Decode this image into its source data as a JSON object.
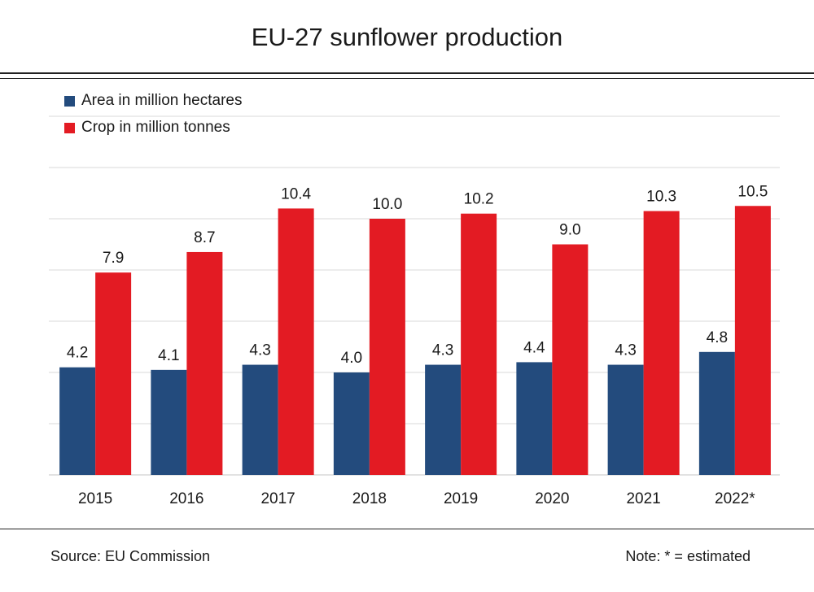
{
  "title": "EU-27 sunflower production",
  "footer": {
    "source": "Source:  EU Commission",
    "note": "Note: * = estimated"
  },
  "colors": {
    "area": "#234b7d",
    "crop": "#e31b23",
    "grid": "#d9d9d9"
  },
  "chart_data": {
    "type": "bar",
    "title": "EU-27 sunflower production",
    "categories": [
      "2015",
      "2016",
      "2017",
      "2018",
      "2019",
      "2020",
      "2021",
      "2022*"
    ],
    "series": [
      {
        "name": "Area in million hectares",
        "values": [
          4.2,
          4.1,
          4.3,
          4.0,
          4.3,
          4.4,
          4.3,
          4.8
        ],
        "labels": [
          "4.2",
          "4.1",
          "4.3",
          "4.0",
          "4.3",
          "4.4",
          "4.3",
          "4.8"
        ]
      },
      {
        "name": "Crop in million tonnes",
        "values": [
          7.9,
          8.7,
          10.4,
          10.0,
          10.2,
          9.0,
          10.3,
          10.5
        ],
        "labels": [
          "7.9",
          "8.7",
          "10.4",
          "10.0",
          "10.2",
          "9.0",
          "10.3",
          "10.5"
        ]
      }
    ],
    "ylim": [
      0,
      14
    ],
    "gridlines": [
      2,
      4,
      6,
      8,
      10,
      12,
      14
    ],
    "grid": true,
    "legend_position": "top-left",
    "xlabel": "",
    "ylabel": ""
  }
}
